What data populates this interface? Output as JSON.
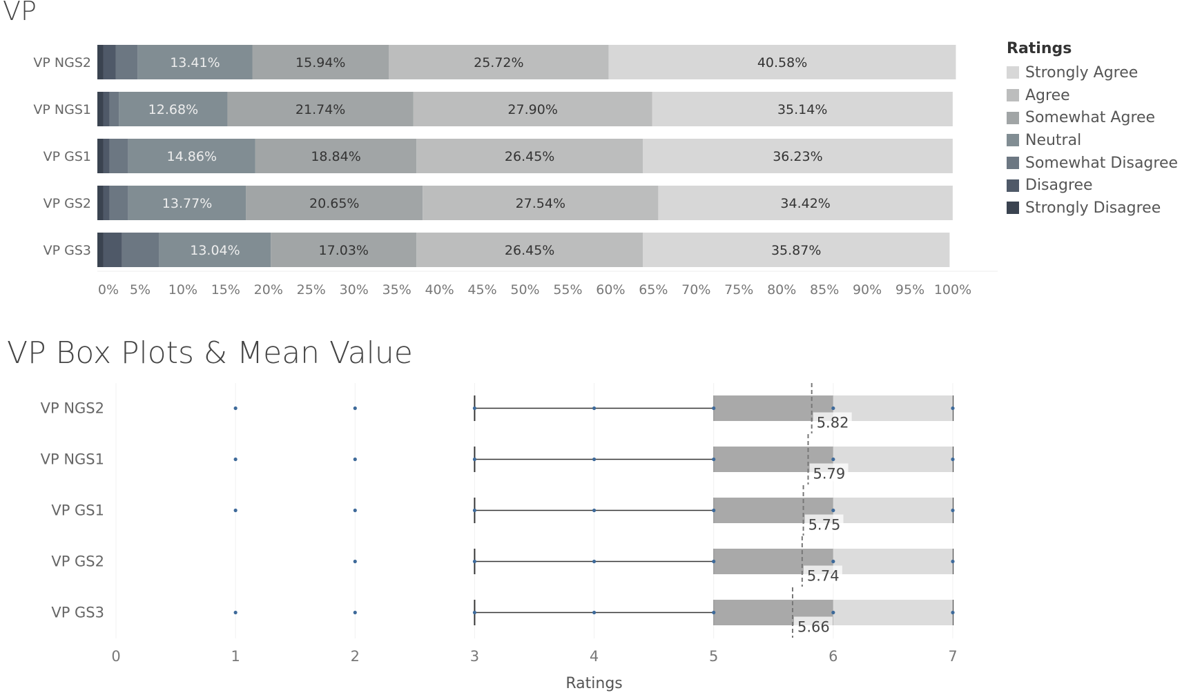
{
  "chart_data": [
    {
      "type": "bar",
      "orientation": "horizontal",
      "stacked": true,
      "title": "VP",
      "categories": [
        "VP NGS2",
        "VP NGS1",
        "VP GS1",
        "VP GS2",
        "VP GS3"
      ],
      "series": [
        {
          "name": "Strongly Disagree",
          "color": "#3a4350",
          "values": [
            0.72,
            0.72,
            0.72,
            0.72,
            0.72
          ]
        },
        {
          "name": "Disagree",
          "color": "#4f5968",
          "values": [
            1.45,
            0.72,
            0.72,
            0.72,
            2.17
          ]
        },
        {
          "name": "Somewhat Disagree",
          "color": "#6c7782",
          "values": [
            2.54,
            1.09,
            2.17,
            2.17,
            4.35
          ]
        },
        {
          "name": "Neutral",
          "color": "#818d93",
          "values": [
            13.41,
            12.68,
            14.86,
            13.77,
            13.04
          ]
        },
        {
          "name": "Somewhat Agree",
          "color": "#a1a5a6",
          "values": [
            15.94,
            21.74,
            18.84,
            20.65,
            17.03
          ]
        },
        {
          "name": "Agree",
          "color": "#bcbdbd",
          "values": [
            25.72,
            27.9,
            26.45,
            27.54,
            26.45
          ]
        },
        {
          "name": "Strongly Agree",
          "color": "#d7d7d7",
          "values": [
            40.58,
            35.14,
            36.23,
            34.42,
            35.87
          ]
        }
      ],
      "labels": [
        [
          "13.41%",
          "15.94%",
          "25.72%",
          "40.58%"
        ],
        [
          "12.68%",
          "21.74%",
          "27.90%",
          "35.14%"
        ],
        [
          "14.86%",
          "18.84%",
          "26.45%",
          "36.23%"
        ],
        [
          "13.77%",
          "20.65%",
          "27.54%",
          "34.42%"
        ],
        [
          "13.04%",
          "17.03%",
          "26.45%",
          "35.87%"
        ]
      ],
      "xticks": [
        "0%",
        "5%",
        "10%",
        "15%",
        "20%",
        "25%",
        "30%",
        "35%",
        "40%",
        "45%",
        "50%",
        "55%",
        "60%",
        "65%",
        "70%",
        "75%",
        "80%",
        "85%",
        "90%",
        "95%",
        "100%"
      ],
      "xlim": [
        0,
        100
      ],
      "legend": {
        "title": "Ratings",
        "position": "right",
        "items": [
          {
            "name": "Strongly Agree",
            "color": "#d7d7d7"
          },
          {
            "name": "Agree",
            "color": "#bcbdbd"
          },
          {
            "name": "Somewhat Agree",
            "color": "#a1a5a6"
          },
          {
            "name": "Neutral",
            "color": "#818d93"
          },
          {
            "name": "Somewhat Disagree",
            "color": "#6c7782"
          },
          {
            "name": "Disagree",
            "color": "#4f5968"
          },
          {
            "name": "Strongly Disagree",
            "color": "#3a4350"
          }
        ]
      }
    },
    {
      "type": "box",
      "title": "VP Box Plots & Mean Value",
      "xlabel": "Ratings",
      "categories": [
        "VP NGS2",
        "VP NGS1",
        "VP GS1",
        "VP GS2",
        "VP GS3"
      ],
      "xlim": [
        0,
        7
      ],
      "xticks": [
        "0",
        "1",
        "2",
        "3",
        "4",
        "5",
        "6",
        "7"
      ],
      "boxes": [
        {
          "name": "VP NGS2",
          "whisker_low": 3,
          "q1": 5,
          "median": 6,
          "q3": 7,
          "whisker_high": 7,
          "mean": 5.82,
          "mean_label": "5.82",
          "points": [
            1,
            2,
            3,
            4,
            5,
            6,
            7
          ]
        },
        {
          "name": "VP NGS1",
          "whisker_low": 3,
          "q1": 5,
          "median": 6,
          "q3": 7,
          "whisker_high": 7,
          "mean": 5.79,
          "mean_label": "5.79",
          "points": [
            1,
            2,
            3,
            4,
            5,
            6,
            7
          ]
        },
        {
          "name": "VP GS1",
          "whisker_low": 3,
          "q1": 5,
          "median": 6,
          "q3": 7,
          "whisker_high": 7,
          "mean": 5.75,
          "mean_label": "5.75",
          "points": [
            1,
            2,
            3,
            4,
            5,
            6,
            7
          ]
        },
        {
          "name": "VP GS2",
          "whisker_low": 3,
          "q1": 5,
          "median": 6,
          "q3": 7,
          "whisker_high": 7,
          "mean": 5.74,
          "mean_label": "5.74",
          "points": [
            2,
            3,
            4,
            5,
            6,
            7
          ]
        },
        {
          "name": "VP GS3",
          "whisker_low": 3,
          "q1": 5,
          "median": 6,
          "q3": 7,
          "whisker_high": 7,
          "mean": 5.66,
          "mean_label": "5.66",
          "points": [
            1,
            2,
            3,
            4,
            5,
            6,
            7
          ]
        }
      ],
      "colors": {
        "lower_box": "#a9a9a9",
        "upper_box": "#dcdcdc",
        "point": "#3e6a9a",
        "line": "#333333",
        "mean_line": "#777777"
      }
    }
  ]
}
